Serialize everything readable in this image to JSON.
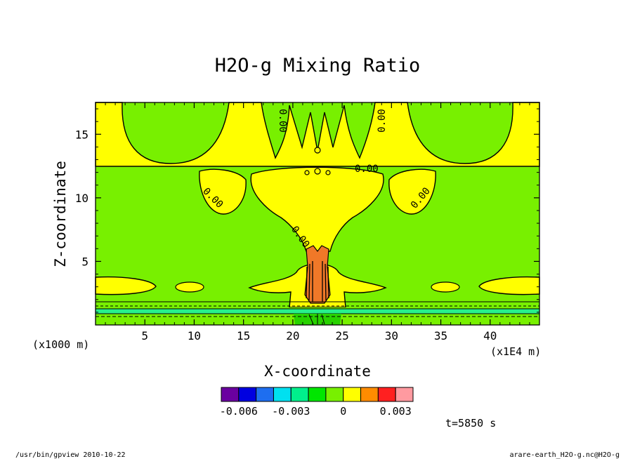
{
  "chart_data": {
    "type": "heatmap",
    "title": "H2O-g Mixing Ratio",
    "xlabel": "X-coordinate",
    "ylabel": "Z-coordinate",
    "x_unit": "(x1E4 m)",
    "y_unit": "(x1000 m)",
    "xlim": [
      0,
      45
    ],
    "ylim": [
      0,
      17.5
    ],
    "x_ticks": [
      "5",
      "10",
      "15",
      "20",
      "25",
      "30",
      "35",
      "40"
    ],
    "y_ticks": [
      "5",
      "10",
      "15"
    ],
    "contour_label": "0.00",
    "colorbar": {
      "colors": [
        "#6a00a0",
        "#0000e0",
        "#1e6ef0",
        "#00e0f0",
        "#00f08c",
        "#00e600",
        "#78f000",
        "#ffff00",
        "#ff8c00",
        "#ff2020",
        "#ff9aa0"
      ],
      "tick_labels": [
        "-0.006",
        "-0.003",
        "0",
        "0.003"
      ]
    },
    "time_label": "t=5850 s"
  },
  "footer": {
    "left": "/usr/bin/gpview  2010-10-22",
    "right": "arare-earth_H2O-g.nc@H2O-g"
  },
  "colors": {
    "field_green": "#78f000",
    "field_yellow": "#ffff00",
    "field_orange": "#f07828",
    "field_aqua": "#28f08c",
    "field_dark_green": "#28d200"
  }
}
